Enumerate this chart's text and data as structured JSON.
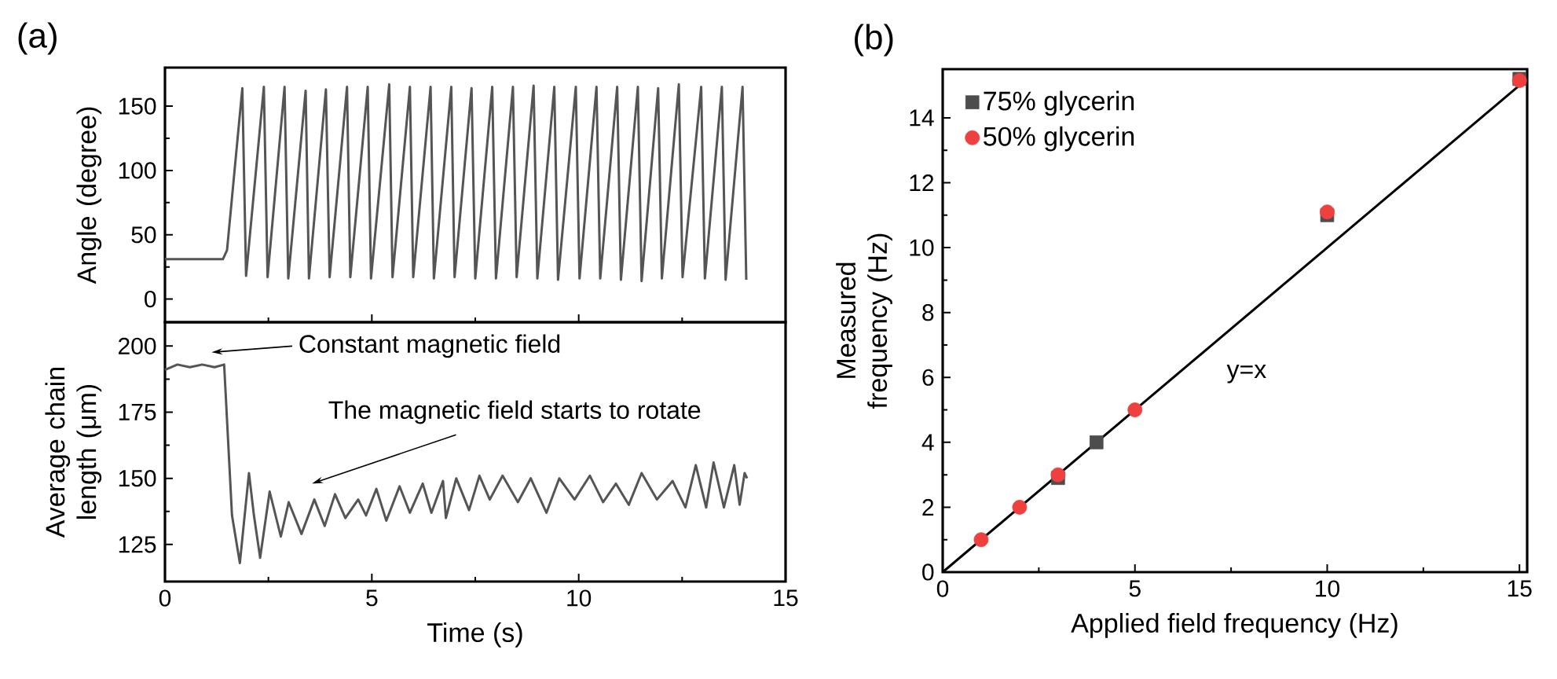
{
  "chart_data": [
    {
      "type": "line",
      "title": "(a)",
      "ylabel": "Angle (degree)",
      "xlim": [
        0,
        15
      ],
      "ylim": [
        -18,
        180
      ],
      "xticks": [
        0,
        5,
        10,
        15
      ],
      "yticks": [
        0,
        50,
        100,
        150
      ],
      "tick_labels": "y",
      "series": [
        {
          "color": "#555555",
          "x": [
            0,
            1.4,
            1.5,
            1.87,
            1.96,
            2.39,
            2.48,
            2.89,
            2.98,
            3.4,
            3.48,
            3.89,
            3.98,
            4.4,
            4.48,
            4.9,
            4.98,
            5.42,
            5.5,
            5.92,
            6.0,
            6.42,
            6.5,
            6.92,
            7.0,
            7.41,
            7.5,
            7.91,
            8.0,
            8.41,
            8.5,
            8.91,
            9.0,
            9.41,
            9.5,
            9.93,
            10.02,
            10.43,
            10.52,
            10.93,
            11.02,
            11.43,
            11.52,
            11.92,
            12.01,
            12.42,
            12.51,
            12.96,
            13.05,
            13.46,
            13.55,
            13.96,
            14.05
          ],
          "values": [
            31,
            31,
            38,
            164,
            18,
            165,
            17,
            165,
            16,
            162,
            16,
            163,
            17,
            165,
            17,
            165,
            16,
            167,
            17,
            165,
            17,
            165,
            16,
            165,
            17,
            164,
            16,
            165,
            16,
            165,
            17,
            166,
            16,
            165,
            15,
            165,
            16,
            165,
            16,
            165,
            15,
            165,
            14,
            164,
            16,
            167,
            17,
            165,
            16,
            165,
            15,
            165,
            15
          ]
        }
      ]
    },
    {
      "type": "line",
      "xlabel": "Time (s)",
      "ylabel": "Average chain length (μm)",
      "xlim": [
        0,
        15
      ],
      "ylim": [
        111,
        209
      ],
      "xticks": [
        0,
        5,
        10,
        15
      ],
      "yticks": [
        125,
        150,
        175,
        200
      ],
      "annotations": [
        "Constant magnetic field",
        "The magnetic field starts to rotate"
      ],
      "series": [
        {
          "color": "#555555",
          "x": [
            0,
            0.3,
            0.6,
            0.9,
            1.2,
            1.43,
            1.62,
            1.81,
            2.03,
            2.15,
            2.3,
            2.53,
            2.8,
            2.99,
            3.3,
            3.61,
            3.86,
            4.11,
            4.36,
            4.67,
            4.86,
            5.11,
            5.35,
            5.67,
            5.92,
            6.23,
            6.44,
            6.72,
            6.79,
            7.04,
            7.35,
            7.6,
            7.85,
            8.16,
            8.53,
            8.84,
            9.22,
            9.53,
            9.9,
            10.27,
            10.59,
            10.9,
            11.21,
            11.52,
            11.89,
            12.27,
            12.58,
            12.83,
            13.08,
            13.26,
            13.51,
            13.76,
            13.89,
            14.01,
            14.07
          ],
          "values": [
            191,
            193,
            192,
            193,
            192,
            193,
            136,
            118,
            152,
            136,
            120,
            145,
            128,
            141,
            129,
            142,
            132,
            144,
            135,
            142,
            136,
            146,
            134,
            147,
            137,
            148,
            137,
            149,
            135,
            150,
            138,
            151,
            142,
            151,
            141,
            150,
            137,
            150,
            142,
            151,
            141,
            148,
            140,
            152,
            142,
            149,
            139,
            155,
            139,
            156,
            139,
            155,
            140,
            152,
            150
          ]
        }
      ]
    },
    {
      "type": "scatter",
      "title": "(b)",
      "xlabel": "Applied field frequency (Hz)",
      "ylabel": "Measured frequency (Hz)",
      "xlim": [
        0,
        15.2
      ],
      "ylim": [
        0,
        15.5
      ],
      "xticks": [
        0,
        5,
        10,
        15
      ],
      "yticks": [
        0,
        2,
        4,
        6,
        8,
        10,
        12,
        14
      ],
      "legend": "top left",
      "annotations": [
        "y=x"
      ],
      "series": [
        {
          "name": "75% glycerin",
          "color": "#4d4d4d",
          "marker": "square",
          "x": [
            3,
            4,
            10,
            15
          ],
          "values": [
            2.9,
            4,
            11,
            15.2
          ]
        },
        {
          "name": "50% glycerin",
          "color": "#ef4040",
          "marker": "circle",
          "x": [
            1,
            2,
            3,
            5,
            10,
            15
          ],
          "values": [
            1,
            2,
            3,
            5,
            11.1,
            15.15
          ]
        },
        {
          "type": "line",
          "color": "#000000",
          "x": [
            0,
            15.2
          ],
          "values": [
            0,
            15.2
          ]
        }
      ]
    }
  ]
}
